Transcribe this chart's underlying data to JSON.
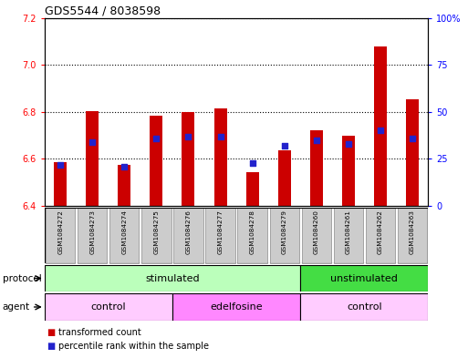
{
  "title": "GDS5544 / 8038598",
  "samples": [
    "GSM1084272",
    "GSM1084273",
    "GSM1084274",
    "GSM1084275",
    "GSM1084276",
    "GSM1084277",
    "GSM1084278",
    "GSM1084279",
    "GSM1084260",
    "GSM1084261",
    "GSM1084262",
    "GSM1084263"
  ],
  "bar_values": [
    6.585,
    6.805,
    6.575,
    6.785,
    6.8,
    6.815,
    6.545,
    6.635,
    6.72,
    6.7,
    7.08,
    6.855
  ],
  "percentile_values": [
    22,
    34,
    21,
    36,
    37,
    37,
    23,
    32,
    35,
    33,
    40,
    36
  ],
  "ylim_left": [
    6.4,
    7.2
  ],
  "ylim_right": [
    0,
    100
  ],
  "yticks_left": [
    6.4,
    6.6,
    6.8,
    7.0,
    7.2
  ],
  "yticks_right": [
    0,
    25,
    50,
    75,
    100
  ],
  "ytick_labels_right": [
    "0",
    "25",
    "50",
    "75",
    "100%"
  ],
  "bar_color": "#cc0000",
  "dot_color": "#2222cc",
  "background_color": "#ffffff",
  "protocol_groups": [
    {
      "label": "stimulated",
      "start": 0,
      "end": 8,
      "color": "#bbffbb"
    },
    {
      "label": "unstimulated",
      "start": 8,
      "end": 12,
      "color": "#44dd44"
    }
  ],
  "agent_groups": [
    {
      "label": "control",
      "start": 0,
      "end": 4,
      "color": "#ffccff"
    },
    {
      "label": "edelfosine",
      "start": 4,
      "end": 8,
      "color": "#ff88ff"
    },
    {
      "label": "control",
      "start": 8,
      "end": 12,
      "color": "#ffccff"
    }
  ],
  "legend_items": [
    {
      "label": "transformed count",
      "color": "#cc0000"
    },
    {
      "label": "percentile rank within the sample",
      "color": "#2222cc"
    }
  ],
  "bar_width": 0.4
}
